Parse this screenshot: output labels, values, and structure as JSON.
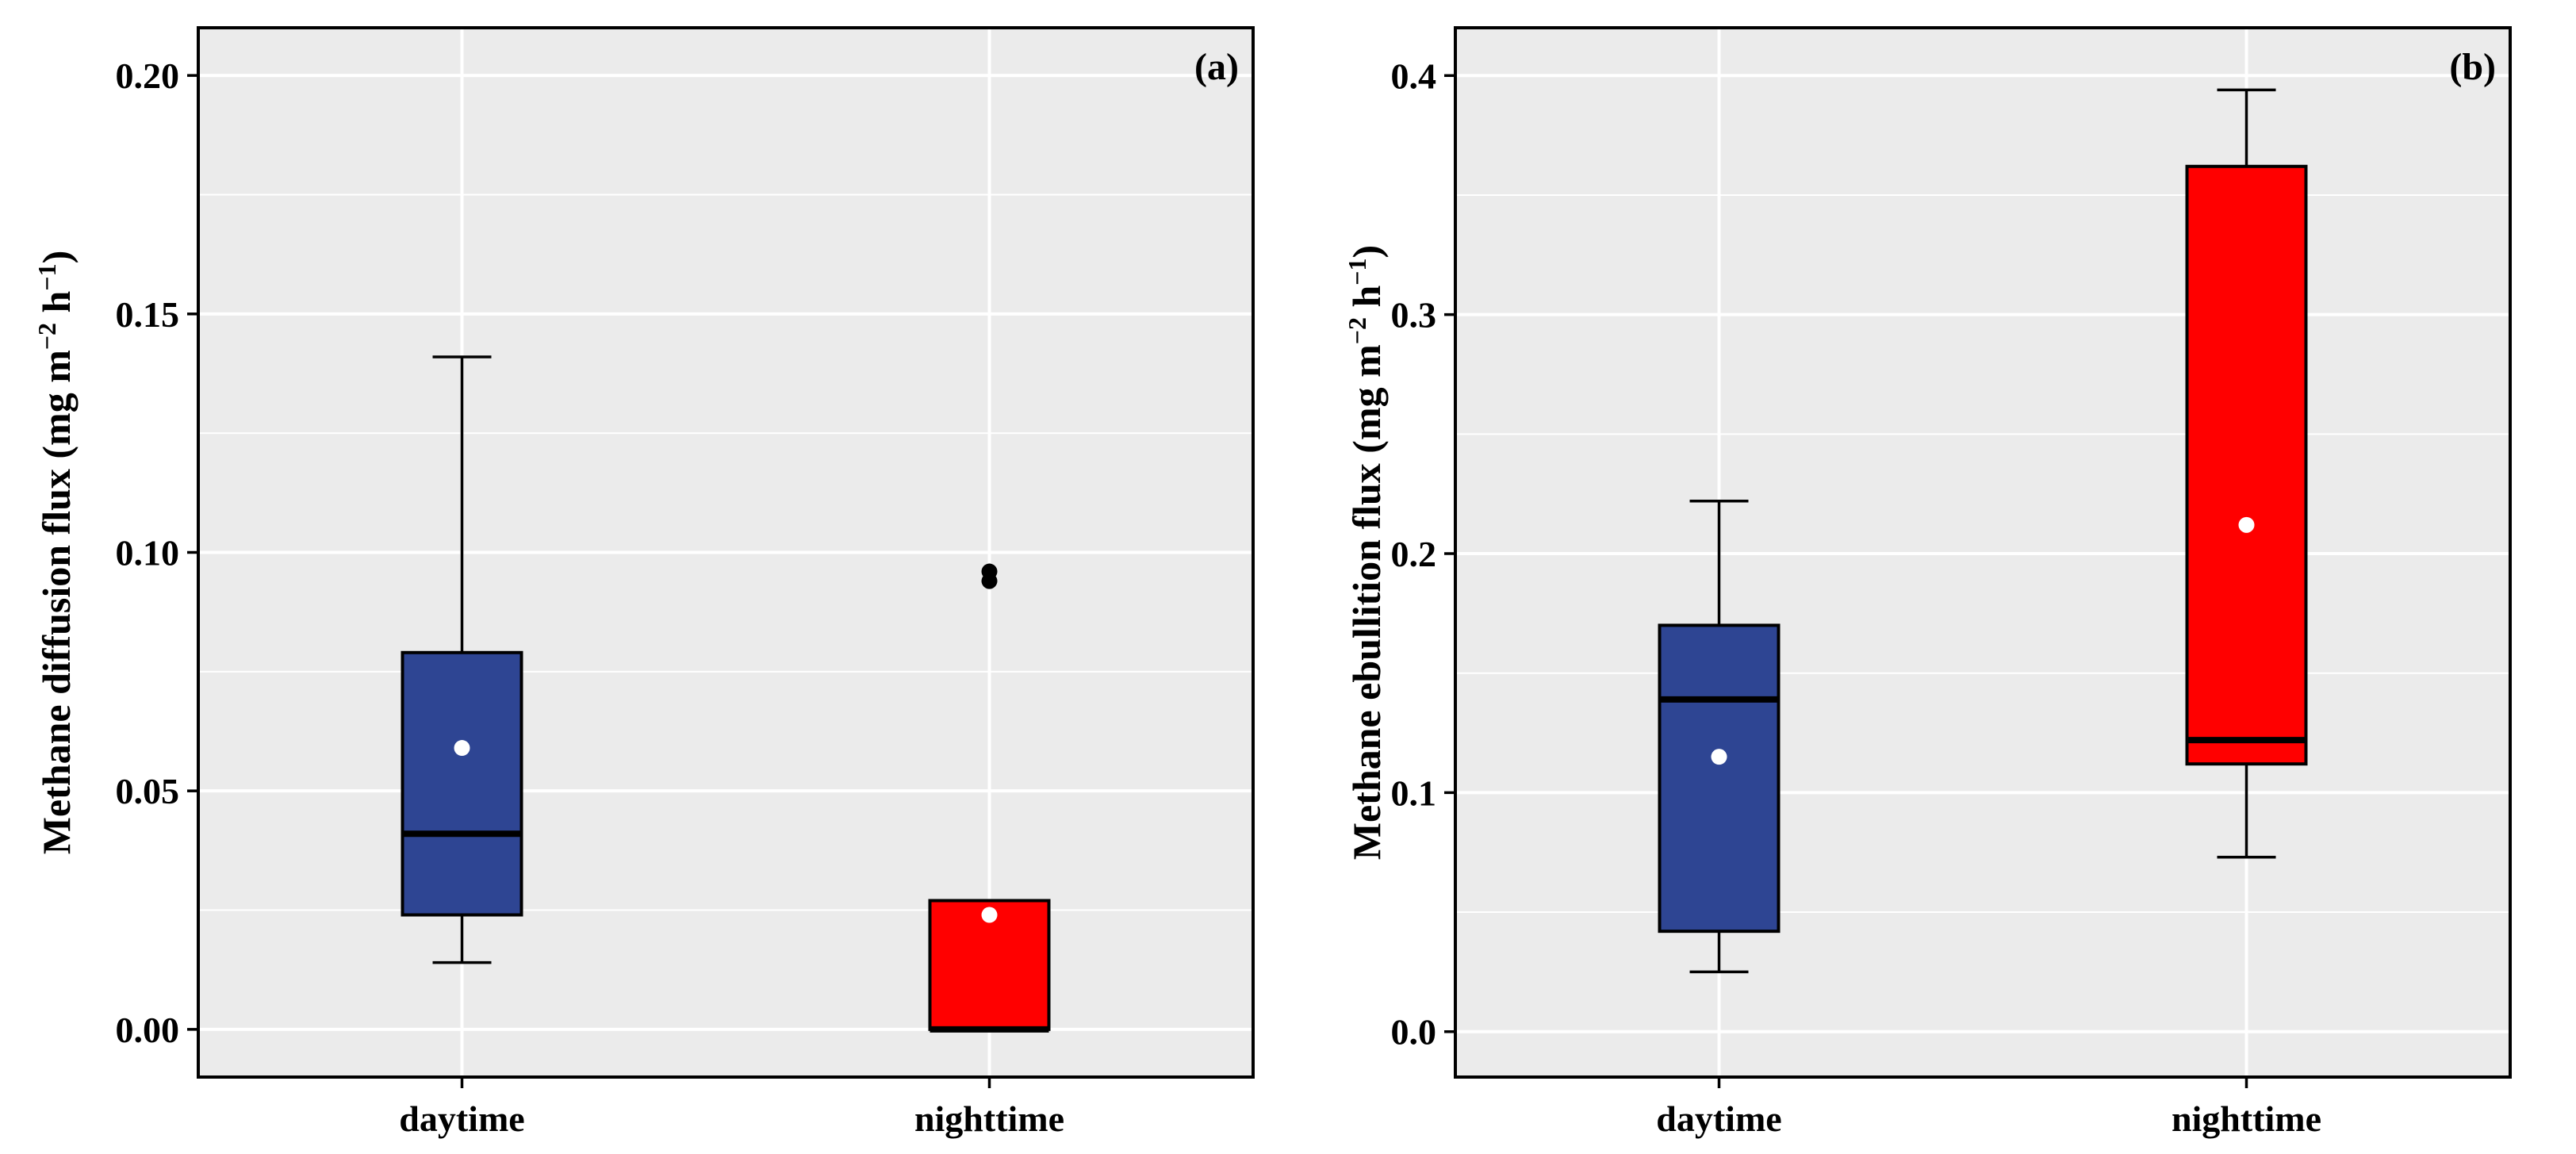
{
  "colors": {
    "panel_bg": "#ebebeb",
    "grid": "#ffffff",
    "daytime": "#2e4593",
    "nighttime": "#ff0000",
    "mean_marker": "#ffffff",
    "outlier": "#000000"
  },
  "chart_data": [
    {
      "type": "box",
      "panel_tag": "(a)",
      "ylabel": {
        "prefix": "Methane diffusion flux (mg m",
        "exp1": "−2",
        "mid": " h",
        "exp2": "−1",
        "suffix": ")"
      },
      "ylim": [
        -0.01,
        0.21
      ],
      "yticks": [
        0.0,
        0.05,
        0.1,
        0.15,
        0.2
      ],
      "ytick_labels": [
        "0.00",
        "0.05",
        "0.10",
        "0.15",
        "0.20"
      ],
      "categories": [
        "daytime",
        "nighttime"
      ],
      "boxes": [
        {
          "category": "daytime",
          "whisker_low": 0.014,
          "q1": 0.024,
          "median": 0.041,
          "q3": 0.079,
          "whisker_high": 0.141,
          "mean": 0.059,
          "outliers": [],
          "color_key": "daytime"
        },
        {
          "category": "nighttime",
          "whisker_low": 0.0,
          "q1": 0.0,
          "median": 0.0,
          "q3": 0.027,
          "whisker_high": 0.027,
          "mean": 0.024,
          "outliers": [
            0.094,
            0.096
          ],
          "color_key": "nighttime"
        }
      ]
    },
    {
      "type": "box",
      "panel_tag": "(b)",
      "ylabel": {
        "prefix": "Methane ebullition flux (mg m",
        "exp1": "−2",
        "mid": " h",
        "exp2": "−1",
        "suffix": ")"
      },
      "ylim": [
        -0.019,
        0.42
      ],
      "yticks": [
        0.0,
        0.1,
        0.2,
        0.3,
        0.4
      ],
      "ytick_labels": [
        "0.0",
        "0.1",
        "0.2",
        "0.3",
        "0.4"
      ],
      "categories": [
        "daytime",
        "nighttime"
      ],
      "boxes": [
        {
          "category": "daytime",
          "whisker_low": 0.025,
          "q1": 0.042,
          "median": 0.139,
          "q3": 0.17,
          "whisker_high": 0.222,
          "mean": 0.115,
          "outliers": [],
          "color_key": "daytime"
        },
        {
          "category": "nighttime",
          "whisker_low": 0.073,
          "q1": 0.112,
          "median": 0.122,
          "q3": 0.362,
          "whisker_high": 0.394,
          "mean": 0.212,
          "outliers": [],
          "color_key": "nighttime"
        }
      ]
    }
  ]
}
